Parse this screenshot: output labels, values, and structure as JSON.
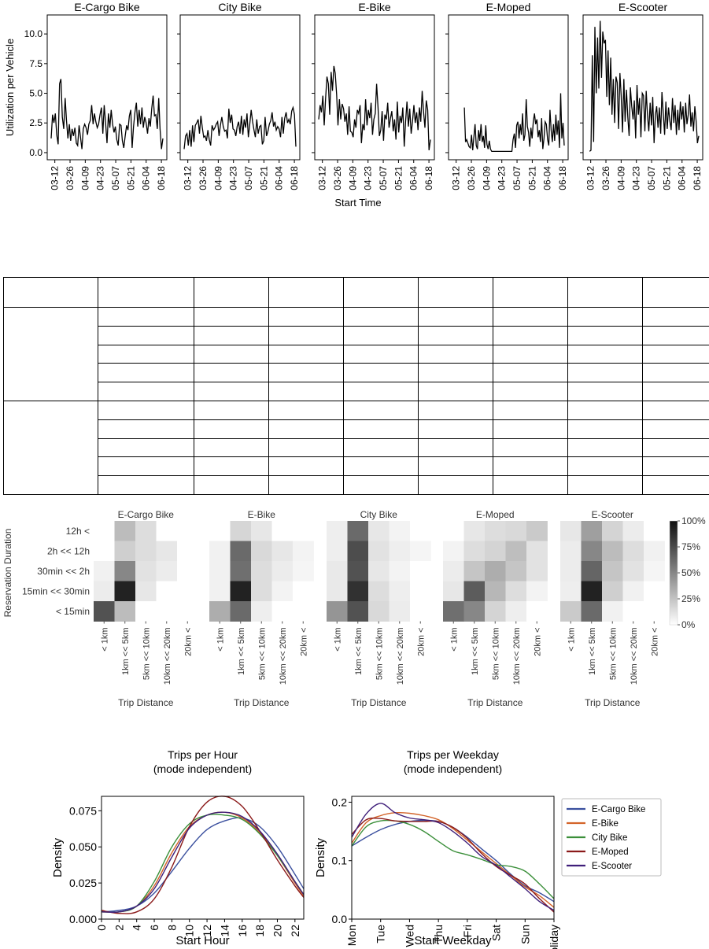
{
  "chart_data": [
    {
      "type": "line",
      "title": "",
      "xlabel": "Start Time",
      "ylabel": "Utilization per Vehicle",
      "ylim": [
        -0.6,
        11.6
      ],
      "yticks": [
        "0.0",
        "2.5",
        "5.0",
        "7.5",
        "10.0"
      ],
      "ytick_values": [
        0,
        2.5,
        5,
        7.5,
        10
      ],
      "x_tick_labels": [
        "03-12",
        "03-26",
        "04-09",
        "04-23",
        "05-07",
        "05-21",
        "06-04",
        "06-18"
      ],
      "x_range_days": [
        0,
        110
      ],
      "x_tick_days": [
        7,
        21,
        35,
        49,
        63,
        77,
        91,
        105
      ],
      "panels": [
        {
          "name": "E-Cargo Bike",
          "values": [
            1.2,
            3.2,
            2.5,
            3.3,
            1.5,
            0.7,
            5.8,
            6.2,
            3.0,
            2.0,
            4.6,
            2.7,
            1.2,
            2.4,
            1.0,
            2.0,
            1.4,
            2.1,
            0.8,
            0.6,
            2.3,
            1.3,
            0.3,
            2.0,
            2.4,
            2.1,
            1.5,
            2.4,
            2.7,
            4.0,
            2.4,
            3.3,
            2.6,
            2.1,
            2.4,
            3.2,
            3.8,
            1.6,
            4.0,
            2.5,
            0.8,
            3.3,
            2.1,
            3.6,
            2.4,
            1.7,
            2.2,
            1.1,
            0.6,
            2.4,
            2.3,
            1.0,
            0.4,
            1.4,
            2.3,
            1.9,
            3.1,
            3.6,
            0.4,
            2.2,
            3.4,
            4.2,
            2.2,
            3.6,
            2.4,
            3.8,
            2.1,
            3.0,
            2.5,
            1.6,
            2.9,
            2.2,
            3.7,
            4.8,
            3.1,
            3.2,
            2.0,
            4.6,
            2.0,
            0.3,
            1.2
          ]
        },
        {
          "name": "City Bike",
          "values": [
            0.3,
            1.4,
            1.6,
            0.6,
            1.9,
            0.5,
            2.3,
            0.9,
            2.3,
            2.5,
            2.8,
            1.6,
            3.1,
            2.1,
            1.3,
            1.4,
            1.0,
            1.9,
            1.1,
            0.6,
            2.3,
            1.9,
            2.1,
            2.4,
            2.6,
            1.4,
            2.3,
            3.0,
            2.2,
            1.8,
            1.9,
            1.2,
            3.7,
            2.5,
            3.2,
            2.0,
            1.9,
            1.4,
            2.2,
            2.6,
            1.6,
            3.1,
            1.5,
            2.8,
            2.1,
            3.3,
            1.3,
            2.4,
            3.6,
            2.6,
            1.9,
            1.3,
            2.8,
            1.6,
            2.2,
            2.3,
            0.7,
            1.0,
            3.0,
            1.4,
            1.8,
            2.4,
            2.7,
            3.4,
            2.2,
            2.6,
            1.9,
            2.2,
            2.0,
            1.3,
            3.0,
            1.6,
            2.9,
            3.4,
            2.5,
            2.8,
            2.4,
            3.5,
            3.8,
            3.2,
            0.5
          ]
        },
        {
          "name": "E-Bike",
          "values": [
            2.8,
            4.0,
            3.4,
            4.8,
            2.3,
            4.6,
            6.4,
            5.8,
            3.2,
            6.8,
            5.2,
            7.3,
            6.7,
            4.9,
            2.3,
            4.5,
            2.8,
            4.1,
            3.7,
            2.6,
            3.3,
            1.5,
            3.9,
            1.8,
            1.7,
            1.3,
            2.8,
            2.1,
            3.6,
            3.3,
            4.0,
            0.8,
            2.4,
            1.9,
            4.5,
            2.3,
            3.6,
            2.9,
            4.2,
            1.5,
            2.8,
            3.3,
            5.8,
            3.8,
            1.4,
            1.9,
            3.5,
            1.0,
            3.2,
            2.8,
            4.2,
            2.1,
            2.9,
            3.5,
            1.8,
            2.8,
            1.1,
            4.3,
            1.7,
            3.1,
            2.5,
            3.8,
            0.5,
            2.6,
            4.3,
            2.2,
            3.7,
            1.6,
            2.6,
            4.0,
            2.5,
            3.4,
            1.9,
            3.8,
            2.6,
            5.2,
            3.5,
            2.1,
            4.4,
            3.6,
            0.2,
            1.1
          ]
        },
        {
          "name": "E-Moped",
          "values": [
            null,
            null,
            null,
            null,
            null,
            null,
            null,
            null,
            null,
            null,
            3.8,
            0.9,
            1.1,
            0.8,
            0.5,
            0.4,
            1.5,
            0.2,
            1.3,
            2.4,
            0.6,
            0.3,
            1.9,
            1.0,
            2.4,
            0.9,
            1.4,
            0.4,
            2.3,
            0.7,
            0.3,
            1.0,
            0.3,
            0.1,
            0.1,
            0.1,
            0.1,
            0.1,
            0.1,
            0.1,
            0.1,
            0.1,
            0.1,
            0.1,
            0.1,
            0.1,
            0.1,
            0.1,
            0.1,
            0.1,
            0.1,
            1.1,
            1.6,
            0.4,
            2.3,
            2.6,
            1.2,
            2.4,
            1.5,
            3.3,
            1.0,
            1.5,
            4.5,
            2.2,
            1.7,
            0.5,
            2.1,
            1.2,
            2.6,
            3.3,
            2.4,
            2.8,
            1.3,
            1.9,
            0.9,
            2.9,
            0.3,
            1.2,
            2.6,
            2.4,
            1.1,
            0.6,
            3.6,
            1.9,
            0.9,
            2.4,
            1.0,
            3.2,
            1.5,
            2.7,
            0.4,
            5.0,
            1.2,
            2.5,
            0.6
          ]
        },
        {
          "name": "E-Scooter",
          "values": [
            null,
            null,
            0.1,
            0.2,
            8.2,
            0.9,
            10.6,
            5.0,
            9.7,
            5.4,
            11.1,
            6.3,
            10.2,
            9.2,
            9.5,
            4.7,
            8.6,
            4.0,
            8.0,
            3.2,
            6.2,
            2.5,
            6.4,
            5.9,
            2.0,
            6.7,
            4.8,
            1.7,
            6.2,
            2.6,
            5.3,
            3.0,
            1.4,
            5.5,
            3.9,
            2.8,
            4.4,
            1.2,
            5.7,
            3.2,
            4.6,
            1.3,
            5.0,
            4.8,
            1.8,
            5.2,
            3.2,
            1.8,
            4.2,
            2.3,
            4.7,
            0.8,
            3.2,
            3.9,
            2.1,
            3.8,
            1.6,
            5.1,
            3.3,
            1.5,
            4.3,
            2.0,
            3.8,
            2.7,
            1.9,
            4.6,
            2.5,
            4.0,
            1.5,
            3.6,
            1.9,
            4.3,
            2.8,
            3.9,
            1.7,
            4.2,
            2.4,
            3.2,
            4.9,
            2.2,
            3.4,
            1.8,
            3.9,
            2.6,
            0.8,
            1.4
          ]
        }
      ]
    },
    {
      "type": "table",
      "columns": 9,
      "rows": 11,
      "cells": []
    },
    {
      "type": "heatmap",
      "title": "",
      "xlabel": "Trip Distance",
      "ylabel": "Reservation Duration",
      "x_categories": [
        "< 1km",
        "1km << 5km",
        "5km << 10km",
        "10km << 20km",
        "20km <"
      ],
      "y_categories": [
        "12h <",
        "2h << 12h",
        "30min << 2h",
        "15min << 30min",
        "< 15min"
      ],
      "colorbar_ticks": [
        "100%",
        "75%",
        "50%",
        "25%",
        "0%"
      ],
      "colorbar_tick_values": [
        100,
        75,
        50,
        25,
        0
      ],
      "value_range": [
        0,
        100
      ],
      "panels": [
        {
          "name": "E-Cargo Bike",
          "values": [
            [
              null,
              28,
              14,
              null,
              null
            ],
            [
              null,
              20,
              14,
              10,
              null
            ],
            [
              6,
              50,
              12,
              8,
              null
            ],
            [
              8,
              92,
              10,
              null,
              null
            ],
            [
              72,
              28,
              null,
              null,
              null
            ]
          ]
        },
        {
          "name": "E-Bike",
          "values": [
            [
              null,
              17,
              10,
              null,
              null
            ],
            [
              6,
              62,
              16,
              10,
              5
            ],
            [
              6,
              60,
              14,
              8,
              4
            ],
            [
              6,
              92,
              14,
              5,
              null
            ],
            [
              34,
              62,
              7,
              null,
              null
            ]
          ]
        },
        {
          "name": "City Bike",
          "values": [
            [
              7,
              62,
              10,
              5,
              null
            ],
            [
              7,
              74,
              12,
              7,
              4
            ],
            [
              9,
              72,
              10,
              5,
              null
            ],
            [
              9,
              86,
              14,
              7,
              null
            ],
            [
              44,
              72,
              16,
              8,
              null
            ]
          ]
        },
        {
          "name": "E-Moped",
          "values": [
            [
              null,
              10,
              14,
              16,
              22
            ],
            [
              5,
              14,
              18,
              27,
              12
            ],
            [
              8,
              24,
              34,
              24,
              12
            ],
            [
              10,
              68,
              30,
              14,
              5
            ],
            [
              60,
              50,
              18,
              7,
              null
            ]
          ]
        },
        {
          "name": "E-Scooter",
          "values": [
            [
              10,
              40,
              18,
              8,
              null
            ],
            [
              8,
              50,
              28,
              14,
              6
            ],
            [
              8,
              64,
              24,
              12,
              4
            ],
            [
              7,
              92,
              20,
              6,
              null
            ],
            [
              22,
              62,
              6,
              null,
              null
            ]
          ]
        }
      ]
    },
    {
      "type": "line",
      "title": "Trips per Hour",
      "subtitle": "(mode independent)",
      "xlabel": "Start Hour",
      "ylabel": "Density",
      "xlim": [
        0,
        23
      ],
      "ylim": [
        0,
        0.085
      ],
      "xticks": [
        0,
        2,
        4,
        6,
        8,
        10,
        12,
        14,
        16,
        18,
        20,
        22
      ],
      "yticks": [
        "0.000",
        "0.025",
        "0.050",
        "0.075"
      ],
      "ytick_values": [
        0,
        0.025,
        0.05,
        0.075
      ],
      "x": [
        0,
        2,
        4,
        6,
        8,
        10,
        12,
        14,
        16,
        18,
        20,
        22,
        23
      ],
      "series": [
        {
          "name": "E-Cargo Bike",
          "values": [
            0.005,
            0.006,
            0.009,
            0.018,
            0.033,
            0.049,
            0.062,
            0.068,
            0.07,
            0.064,
            0.05,
            0.031,
            0.021
          ]
        },
        {
          "name": "E-Bike",
          "values": [
            0.005,
            0.005,
            0.009,
            0.023,
            0.046,
            0.064,
            0.072,
            0.074,
            0.07,
            0.06,
            0.044,
            0.025,
            0.016
          ]
        },
        {
          "name": "City Bike",
          "values": [
            0.005,
            0.005,
            0.009,
            0.026,
            0.05,
            0.066,
            0.072,
            0.072,
            0.069,
            0.059,
            0.044,
            0.026,
            0.017
          ]
        },
        {
          "name": "E-Moped",
          "values": [
            0.006,
            0.004,
            0.005,
            0.014,
            0.036,
            0.064,
            0.081,
            0.085,
            0.078,
            0.061,
            0.041,
            0.023,
            0.015
          ]
        },
        {
          "name": "E-Scooter",
          "values": [
            0.005,
            0.005,
            0.009,
            0.021,
            0.043,
            0.063,
            0.072,
            0.074,
            0.071,
            0.061,
            0.045,
            0.026,
            0.017
          ]
        }
      ]
    },
    {
      "type": "line",
      "title": "Trips per Weekday",
      "subtitle": "(mode independent)",
      "xlabel": "Start Weekday",
      "ylabel": "Density",
      "categories": [
        "Mon",
        "Tue",
        "Wed",
        "Thu",
        "Fri",
        "Sat",
        "Sun",
        "Holiday"
      ],
      "ylim": [
        0,
        0.21
      ],
      "yticks": [
        "0.0",
        "0.1",
        "0.2"
      ],
      "ytick_values": [
        0,
        0.1,
        0.2
      ],
      "x": [
        0,
        0.5,
        1,
        1.5,
        2,
        2.5,
        3,
        3.5,
        4,
        4.5,
        5,
        5.5,
        6,
        6.5,
        7
      ],
      "series": [
        {
          "name": "E-Cargo Bike",
          "values": [
            0.125,
            0.14,
            0.153,
            0.162,
            0.167,
            0.169,
            0.167,
            0.157,
            0.14,
            0.12,
            0.1,
            0.077,
            0.057,
            0.045,
            0.03
          ]
        },
        {
          "name": "E-Bike",
          "values": [
            0.13,
            0.165,
            0.177,
            0.182,
            0.181,
            0.177,
            0.17,
            0.155,
            0.135,
            0.115,
            0.095,
            0.075,
            0.055,
            0.04,
            0.02
          ]
        },
        {
          "name": "City Bike",
          "values": [
            0.125,
            0.158,
            0.168,
            0.168,
            0.162,
            0.15,
            0.133,
            0.117,
            0.11,
            0.102,
            0.093,
            0.09,
            0.082,
            0.06,
            0.035
          ]
        },
        {
          "name": "E-Moped",
          "values": [
            0.145,
            0.17,
            0.172,
            0.168,
            0.167,
            0.167,
            0.167,
            0.157,
            0.138,
            0.112,
            0.09,
            0.075,
            0.06,
            0.035,
            0.012
          ]
        },
        {
          "name": "E-Scooter",
          "values": [
            0.14,
            0.18,
            0.198,
            0.182,
            0.173,
            0.17,
            0.165,
            0.15,
            0.13,
            0.107,
            0.092,
            0.072,
            0.052,
            0.03,
            0.015
          ]
        }
      ]
    }
  ],
  "colors": {
    "E-Cargo Bike": "#3a4f9e",
    "E-Bike": "#d3642a",
    "City Bike": "#3b8f3a",
    "E-Moped": "#8b1a1a",
    "E-Scooter": "#3f1f7a"
  }
}
